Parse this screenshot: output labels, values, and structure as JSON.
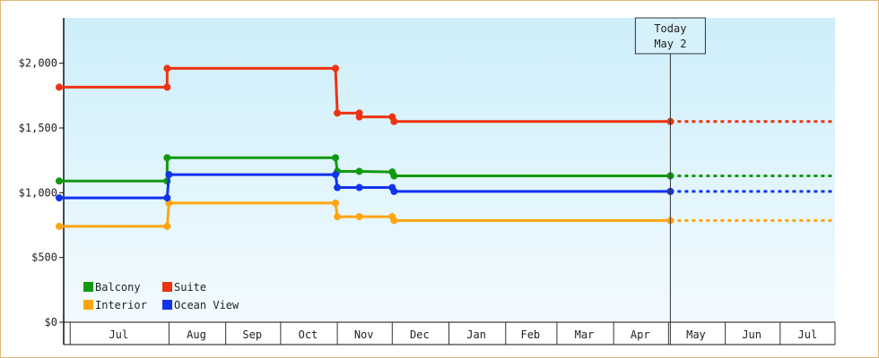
{
  "chart_data": {
    "type": "line",
    "step": true,
    "title": "",
    "xlabel": "",
    "ylabel": "",
    "ylim": [
      0,
      2350
    ],
    "y_ticks": [
      {
        "value": 0,
        "label": "$0"
      },
      {
        "value": 500,
        "label": "$500"
      },
      {
        "value": 1000,
        "label": "$1,000"
      },
      {
        "value": 1500,
        "label": "$1,500"
      },
      {
        "value": 2000,
        "label": "$2,000"
      }
    ],
    "x_range": [
      "2016-06-02",
      "2017-07-31"
    ],
    "months": [
      {
        "label": "Jul",
        "start": "2016-06-08",
        "end": "2016-07-31"
      },
      {
        "label": "Aug",
        "start": "2016-08-01",
        "end": "2016-08-31"
      },
      {
        "label": "Sep",
        "start": "2016-09-01",
        "end": "2016-09-30"
      },
      {
        "label": "Oct",
        "start": "2016-10-01",
        "end": "2016-10-31"
      },
      {
        "label": "Nov",
        "start": "2016-11-01",
        "end": "2016-11-30"
      },
      {
        "label": "Dec",
        "start": "2016-12-01",
        "end": "2016-12-31"
      },
      {
        "label": "Jan",
        "start": "2017-01-01",
        "end": "2017-01-31"
      },
      {
        "label": "Feb",
        "start": "2017-02-01",
        "end": "2017-02-28"
      },
      {
        "label": "Mar",
        "start": "2017-03-01",
        "end": "2017-03-31"
      },
      {
        "label": "Apr",
        "start": "2017-04-01",
        "end": "2017-04-30"
      },
      {
        "label": "May",
        "start": "2017-05-01",
        "end": "2017-05-31"
      },
      {
        "label": "Jun",
        "start": "2017-06-01",
        "end": "2017-06-30"
      },
      {
        "label": "Jul",
        "start": "2017-07-01",
        "end": "2017-07-31"
      }
    ],
    "today": {
      "date": "2017-05-02",
      "line1": "Today",
      "line2": "May 2"
    },
    "projection_end": "2017-07-31",
    "series": [
      {
        "name": "Balcony",
        "color": "#119911",
        "points": [
          [
            "2016-06-02",
            1090
          ],
          [
            "2016-07-31",
            1090
          ],
          [
            "2016-07-31",
            1270
          ],
          [
            "2016-10-31",
            1270
          ],
          [
            "2016-11-01",
            1165
          ],
          [
            "2016-11-13",
            1165
          ],
          [
            "2016-12-01",
            1160
          ],
          [
            "2016-12-02",
            1130
          ],
          [
            "2017-05-02",
            1130
          ]
        ]
      },
      {
        "name": "Suite",
        "color": "#ee3311",
        "points": [
          [
            "2016-06-02",
            1815
          ],
          [
            "2016-07-31",
            1815
          ],
          [
            "2016-07-31",
            1960
          ],
          [
            "2016-10-31",
            1960
          ],
          [
            "2016-11-01",
            1615
          ],
          [
            "2016-11-13",
            1615
          ],
          [
            "2016-11-13",
            1585
          ],
          [
            "2016-12-01",
            1585
          ],
          [
            "2016-12-02",
            1550
          ],
          [
            "2017-05-02",
            1550
          ]
        ]
      },
      {
        "name": "Interior",
        "color": "#ffa511",
        "points": [
          [
            "2016-06-02",
            740
          ],
          [
            "2016-07-31",
            740
          ],
          [
            "2016-08-01",
            920
          ],
          [
            "2016-10-31",
            920
          ],
          [
            "2016-11-01",
            815
          ],
          [
            "2016-11-13",
            815
          ],
          [
            "2016-12-01",
            815
          ],
          [
            "2016-12-02",
            785
          ],
          [
            "2017-05-02",
            785
          ]
        ]
      },
      {
        "name": "Ocean View",
        "color": "#1133ee",
        "points": [
          [
            "2016-06-02",
            960
          ],
          [
            "2016-07-31",
            960
          ],
          [
            "2016-08-01",
            1140
          ],
          [
            "2016-10-31",
            1140
          ],
          [
            "2016-11-01",
            1040
          ],
          [
            "2016-11-13",
            1040
          ],
          [
            "2016-12-01",
            1040
          ],
          [
            "2016-12-02",
            1010
          ],
          [
            "2017-05-02",
            1010
          ]
        ]
      }
    ],
    "legend_placement": "bottom-left",
    "legend_order": [
      "Balcony",
      "Suite",
      "Interior",
      "Ocean View"
    ],
    "background_gradient": [
      "#cdeefa",
      "#f3fbff"
    ],
    "grid": false
  }
}
